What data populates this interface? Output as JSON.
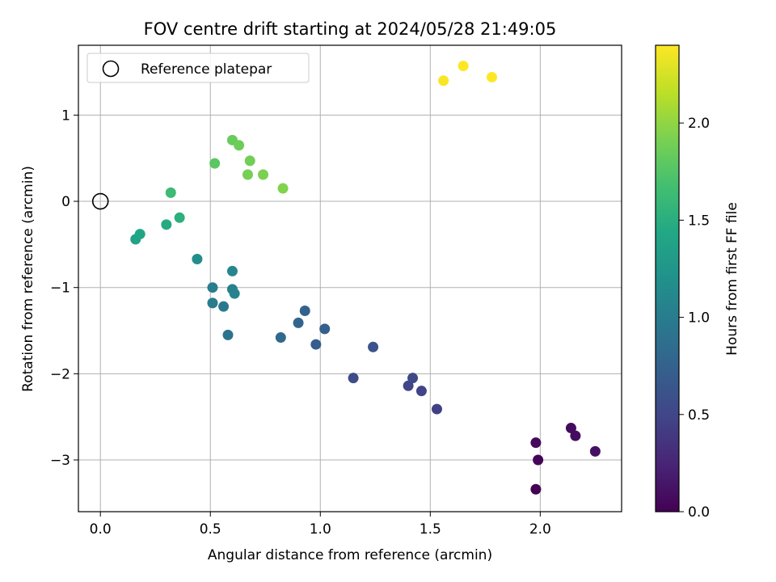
{
  "chart_data": {
    "type": "scatter",
    "title": "FOV centre drift starting at 2024/05/28 21:49:05",
    "xlabel": "Angular distance from reference (arcmin)",
    "ylabel": "Rotation from reference (arcmin)",
    "xlim": [
      -0.1,
      2.37
    ],
    "ylim": [
      -3.6,
      1.81
    ],
    "xticks": [
      0.0,
      0.5,
      1.0,
      1.5,
      2.0
    ],
    "xtick_labels": [
      "0.0",
      "0.5",
      "1.0",
      "1.5",
      "2.0"
    ],
    "yticks": [
      -3,
      -2,
      -1,
      0,
      1
    ],
    "ytick_labels": [
      "−3",
      "−2",
      "−1",
      "0",
      "1"
    ],
    "grid": true,
    "legend": {
      "placement": "top-left",
      "entries": [
        {
          "label": "Reference platepar",
          "marker": "open-circle"
        }
      ]
    },
    "reference_point": {
      "x": 0.0,
      "y": 0.0
    },
    "colorbar": {
      "label": "Hours from first FF file",
      "colormap": "viridis",
      "range": [
        0.0,
        2.4
      ],
      "ticks": [
        0.0,
        0.5,
        1.0,
        1.5,
        2.0
      ],
      "tick_labels": [
        "0.0",
        "0.5",
        "1.0",
        "1.5",
        "2.0"
      ]
    },
    "points": [
      {
        "x": 1.98,
        "y": -3.34,
        "hours": 0.0
      },
      {
        "x": 1.99,
        "y": -3.0,
        "hours": 0.03
      },
      {
        "x": 1.98,
        "y": -2.8,
        "hours": 0.05
      },
      {
        "x": 2.14,
        "y": -2.63,
        "hours": 0.07
      },
      {
        "x": 2.16,
        "y": -2.72,
        "hours": 0.08
      },
      {
        "x": 2.25,
        "y": -2.9,
        "hours": 0.1
      },
      {
        "x": 1.53,
        "y": -2.41,
        "hours": 0.45
      },
      {
        "x": 1.46,
        "y": -2.2,
        "hours": 0.48
      },
      {
        "x": 1.4,
        "y": -2.14,
        "hours": 0.5
      },
      {
        "x": 1.42,
        "y": -2.05,
        "hours": 0.52
      },
      {
        "x": 1.15,
        "y": -2.05,
        "hours": 0.55
      },
      {
        "x": 1.24,
        "y": -1.69,
        "hours": 0.6
      },
      {
        "x": 0.98,
        "y": -1.66,
        "hours": 0.7
      },
      {
        "x": 1.02,
        "y": -1.48,
        "hours": 0.72
      },
      {
        "x": 0.93,
        "y": -1.27,
        "hours": 0.75
      },
      {
        "x": 0.9,
        "y": -1.41,
        "hours": 0.78
      },
      {
        "x": 0.82,
        "y": -1.58,
        "hours": 0.82
      },
      {
        "x": 0.58,
        "y": -1.55,
        "hours": 0.92
      },
      {
        "x": 0.56,
        "y": -1.22,
        "hours": 0.96
      },
      {
        "x": 0.51,
        "y": -1.18,
        "hours": 0.99
      },
      {
        "x": 0.51,
        "y": -1.0,
        "hours": 1.02
      },
      {
        "x": 0.6,
        "y": -1.02,
        "hours": 1.05
      },
      {
        "x": 0.61,
        "y": -1.07,
        "hours": 1.07
      },
      {
        "x": 0.6,
        "y": -0.81,
        "hours": 1.1
      },
      {
        "x": 0.44,
        "y": -0.67,
        "hours": 1.17
      },
      {
        "x": 0.16,
        "y": -0.44,
        "hours": 1.38
      },
      {
        "x": 0.18,
        "y": -0.38,
        "hours": 1.41
      },
      {
        "x": 0.3,
        "y": -0.27,
        "hours": 1.46
      },
      {
        "x": 0.36,
        "y": -0.19,
        "hours": 1.52
      },
      {
        "x": 0.32,
        "y": 0.1,
        "hours": 1.63
      },
      {
        "x": 0.52,
        "y": 0.44,
        "hours": 1.78
      },
      {
        "x": 0.6,
        "y": 0.71,
        "hours": 1.84
      },
      {
        "x": 0.63,
        "y": 0.65,
        "hours": 1.86
      },
      {
        "x": 0.68,
        "y": 0.47,
        "hours": 1.88
      },
      {
        "x": 0.67,
        "y": 0.31,
        "hours": 1.9
      },
      {
        "x": 0.74,
        "y": 0.31,
        "hours": 1.92
      },
      {
        "x": 0.83,
        "y": 0.15,
        "hours": 1.95
      },
      {
        "x": 1.56,
        "y": 1.4,
        "hours": 2.38
      },
      {
        "x": 1.65,
        "y": 1.57,
        "hours": 2.4
      },
      {
        "x": 1.78,
        "y": 1.44,
        "hours": 2.4
      }
    ]
  }
}
